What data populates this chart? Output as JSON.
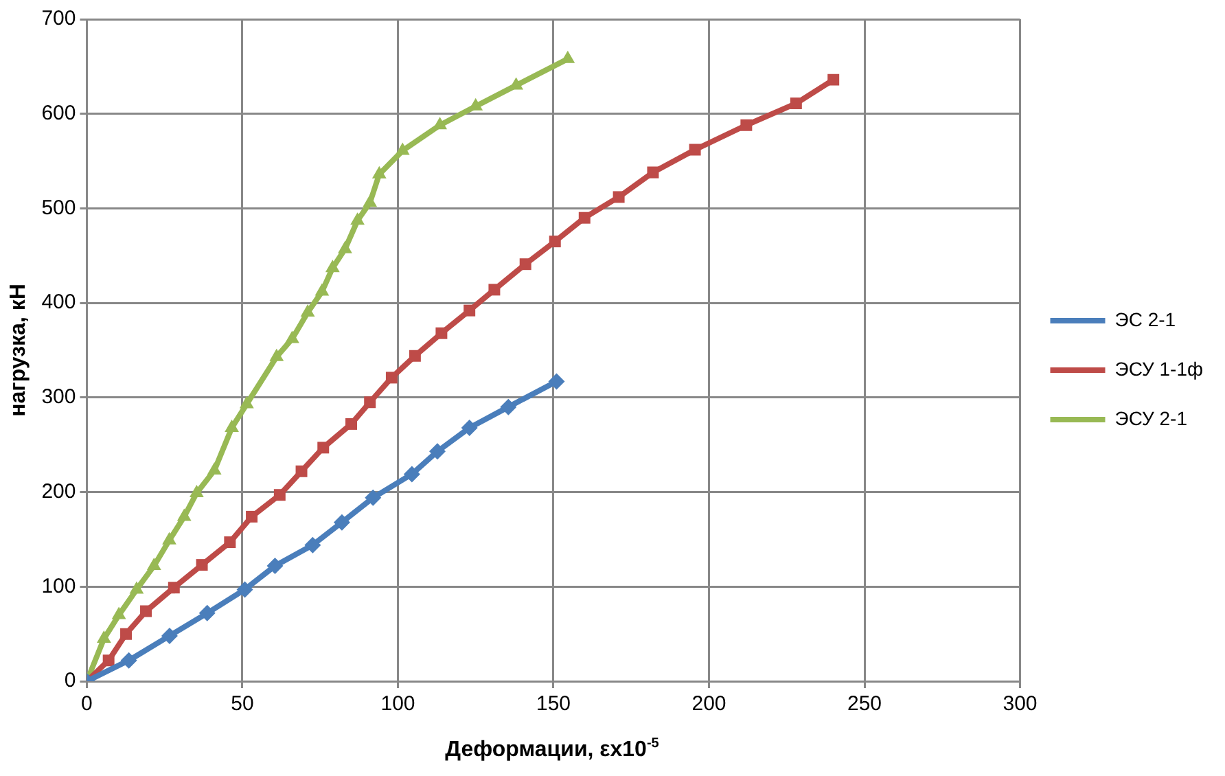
{
  "chart_data": {
    "type": "line",
    "xlabel": "Деформации, εx10$^{-5}$",
    "ylabel": "нагрузка, кН",
    "xlim": [
      0,
      300
    ],
    "xticks": [
      0,
      50,
      100,
      150,
      200,
      250,
      300
    ],
    "ylim": [
      0,
      700
    ],
    "yticks": [
      0,
      100,
      200,
      300,
      400,
      500,
      600,
      700
    ],
    "grid": true,
    "legend": "right",
    "line_style": "solid",
    "series": [
      {
        "name": "ЭС 2-1",
        "color": "#4a7ebb",
        "marker": "diamond",
        "x": [
          0,
          13.5,
          26.6,
          38.7,
          50.8,
          60.5,
          72.6,
          82,
          92,
          104.5,
          112.7,
          123,
          135.5,
          151
        ],
        "values": [
          0,
          22,
          48,
          72,
          97,
          122,
          144,
          168,
          194,
          219,
          243,
          268,
          290,
          317
        ]
      },
      {
        "name": "ЭСУ 1-1ф",
        "color": "#be4b48",
        "marker": "square",
        "x": [
          0,
          7,
          12.6,
          19,
          28,
          37,
          46,
          53,
          62,
          69,
          76,
          85,
          91,
          98,
          105.5,
          114,
          123,
          131,
          141,
          150.5,
          160,
          171,
          182,
          195.5,
          212,
          228,
          240
        ],
        "values": [
          0,
          22,
          50,
          74,
          99,
          123,
          147,
          174,
          197,
          222,
          247,
          272,
          295,
          321,
          344,
          368,
          392,
          414,
          441,
          465,
          490,
          512,
          538,
          562,
          588,
          611,
          636
        ]
      },
      {
        "name": "ЭСУ 2-1",
        "color": "#98b954",
        "marker": "triangle",
        "x": [
          0,
          5.5,
          10.3,
          16,
          21.6,
          26.5,
          31.3,
          35.3,
          41,
          46.6,
          51.4,
          61,
          66,
          71,
          75.6,
          79,
          83,
          87,
          91,
          94,
          101.5,
          113.5,
          125,
          138,
          154.6
        ],
        "values": [
          0,
          45,
          70,
          97,
          122,
          149,
          174,
          199,
          223,
          268,
          293,
          343,
          362,
          390,
          412,
          437,
          457,
          487,
          506,
          536,
          561,
          588,
          608,
          630,
          658
        ]
      }
    ]
  }
}
